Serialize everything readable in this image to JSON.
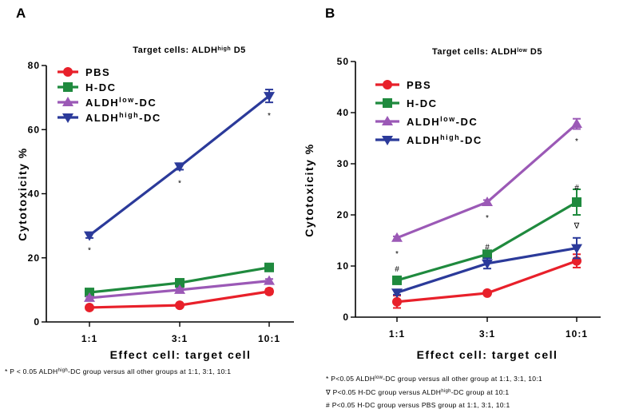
{
  "chart_data": [
    {
      "panel": "A",
      "type": "line",
      "title": "Target cells: ALDHhigh D5",
      "title_parts": {
        "main": "Target cells: ALDH",
        "sup": "high",
        "suffix": " D5"
      },
      "xlabel": "Effect cell: target cell",
      "ylabel": "Cytotoxicity %",
      "categories": [
        "1:1",
        "3:1",
        "10:1"
      ],
      "ylim": [
        0,
        80
      ],
      "yticks": [
        0,
        20,
        40,
        60,
        80
      ],
      "legend_position": "top-left",
      "series": [
        {
          "name": "PBS",
          "label_main": "PBS",
          "label_sup": "",
          "label_suffix": "",
          "color": "#e8202a",
          "marker": "circle",
          "values": [
            4.5,
            5.2,
            9.5
          ],
          "errors": [
            0.5,
            0.5,
            0.8
          ]
        },
        {
          "name": "H-DC",
          "label_main": "H-DC",
          "label_sup": "",
          "label_suffix": "",
          "color": "#1f8a3e",
          "marker": "square",
          "values": [
            9.2,
            12.2,
            17.0
          ],
          "errors": [
            0.6,
            0.8,
            0.8
          ]
        },
        {
          "name": "ALDHlow-DC",
          "label_main": "ALDH",
          "label_sup": "low",
          "label_suffix": "-DC",
          "color": "#9b59b6",
          "marker": "triangle-up",
          "values": [
            7.5,
            10.0,
            12.8
          ],
          "errors": [
            0.4,
            0.5,
            0.6
          ]
        },
        {
          "name": "ALDHhigh-DC",
          "label_main": "ALDH",
          "label_sup": "high",
          "label_suffix": "-DC",
          "color": "#2b3a9a",
          "marker": "triangle-down",
          "values": [
            27.0,
            48.5,
            70.5
          ],
          "errors": [
            0.8,
            1.0,
            2.0
          ]
        }
      ],
      "annotations": [
        {
          "text": "*",
          "category": "1:1",
          "y": 22.5
        },
        {
          "text": "*",
          "category": "3:1",
          "y": 43.5
        },
        {
          "text": "*",
          "category": "10:1",
          "y": 64.5
        }
      ],
      "footnotes": [
        {
          "main": "* P < 0.05 ALDH",
          "sup": "high",
          "suffix": "-DC group versus all other groups at 1:1, 3:1, 10:1"
        }
      ]
    },
    {
      "panel": "B",
      "type": "line",
      "title": "Target cells: ALDHlow D5",
      "title_parts": {
        "main": "Target cells: ALDH",
        "sup": "low",
        "suffix": " D5"
      },
      "xlabel": "Effect cell: target cell",
      "ylabel": "Cytotoxicity %",
      "categories": [
        "1:1",
        "3:1",
        "10:1"
      ],
      "ylim": [
        0,
        50
      ],
      "yticks": [
        0,
        10,
        20,
        30,
        40,
        50
      ],
      "legend_position": "top-left",
      "series": [
        {
          "name": "PBS",
          "label_main": "PBS",
          "label_sup": "",
          "label_suffix": "",
          "color": "#e8202a",
          "marker": "circle",
          "values": [
            3.0,
            4.7,
            11.0
          ],
          "errors": [
            1.2,
            0.4,
            1.3
          ]
        },
        {
          "name": "H-DC",
          "label_main": "H-DC",
          "label_sup": "",
          "label_suffix": "",
          "color": "#1f8a3e",
          "marker": "square",
          "values": [
            7.2,
            12.3,
            22.5
          ],
          "errors": [
            0.5,
            0.6,
            2.5
          ]
        },
        {
          "name": "ALDHlow-DC",
          "label_main": "ALDH",
          "label_sup": "low",
          "label_suffix": "-DC",
          "color": "#9b59b6",
          "marker": "triangle-up",
          "values": [
            15.5,
            22.5,
            37.8
          ],
          "errors": [
            0.3,
            0.4,
            1.0
          ]
        },
        {
          "name": "ALDHhigh-DC",
          "label_main": "ALDH",
          "label_sup": "high",
          "label_suffix": "-DC",
          "color": "#2b3a9a",
          "marker": "triangle-down",
          "values": [
            4.8,
            10.5,
            13.5
          ],
          "errors": [
            0.4,
            1.0,
            2.0
          ]
        }
      ],
      "annotations": [
        {
          "text": "*",
          "category": "1:1",
          "y": 12.5
        },
        {
          "text": "#",
          "category": "1:1",
          "y": 9.5
        },
        {
          "text": "*",
          "category": "3:1",
          "y": 19.5
        },
        {
          "text": "#",
          "category": "3:1",
          "y": 13.8
        },
        {
          "text": "*",
          "category": "10:1",
          "y": 34.5
        },
        {
          "text": "#",
          "category": "10:1",
          "y": 25.5
        },
        {
          "text": "∇",
          "category": "10:1",
          "y": 18.0
        }
      ],
      "footnotes": [
        {
          "main": "* P<0.05 ALDH",
          "sup": "low",
          "suffix": "-DC group versus all other group at 1:1, 3:1, 10:1"
        },
        {
          "main": "∇  P<0.05 H-DC group versus ALDH",
          "sup": "high",
          "suffix": "-DC group at 10:1"
        },
        {
          "main": "# P<0.05 H-DC group versus PBS group at 1:1, 3:1, 10:1",
          "sup": "",
          "suffix": ""
        }
      ]
    }
  ]
}
